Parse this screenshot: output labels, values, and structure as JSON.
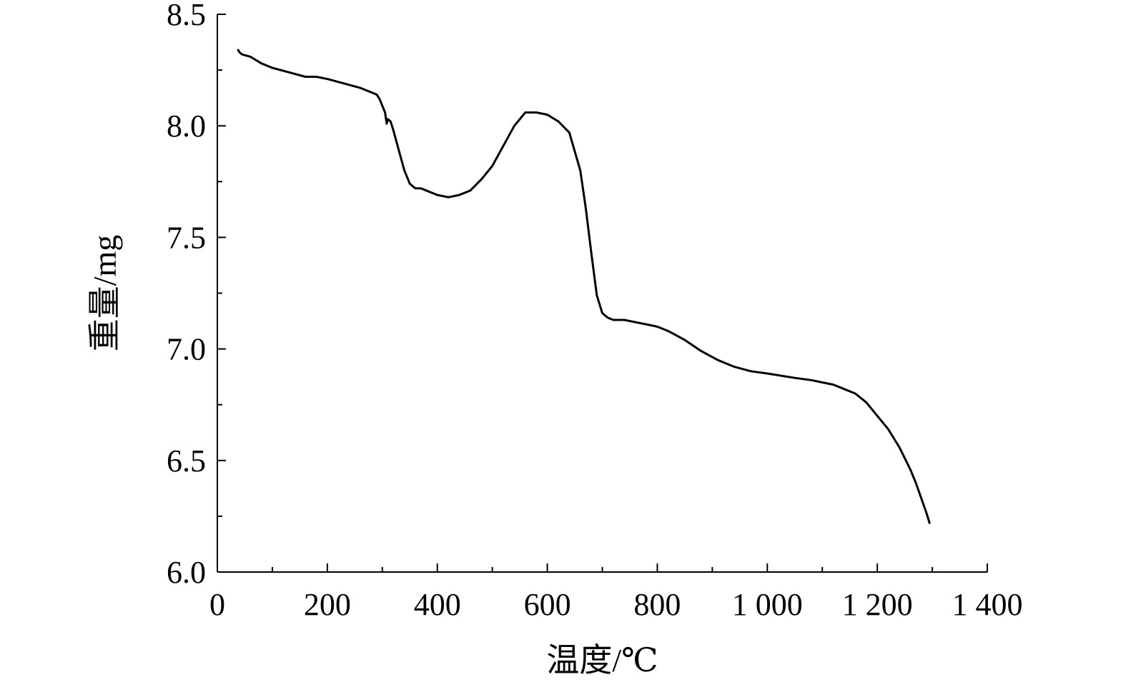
{
  "chart_data": {
    "type": "line",
    "xlabel": "温度/℃",
    "ylabel": "重量/mg",
    "xlim": [
      0,
      1400
    ],
    "ylim": [
      6.0,
      8.5
    ],
    "x_ticks": [
      0,
      200,
      400,
      600,
      800,
      1000,
      1200,
      1400
    ],
    "x_tick_labels": [
      "0",
      "200",
      "400",
      "600",
      "800",
      "1 000",
      "1 200",
      "1 400"
    ],
    "x_minor_step": 100,
    "y_ticks": [
      6.0,
      6.5,
      7.0,
      7.5,
      8.0,
      8.5
    ],
    "y_tick_labels": [
      "6.0",
      "6.5",
      "7.0",
      "7.5",
      "8.0",
      "8.5"
    ],
    "y_minor_step": 0.25,
    "grid": false,
    "series": [
      {
        "color": "#000000",
        "x": [
          38,
          40,
          45,
          60,
          80,
          100,
          130,
          160,
          180,
          200,
          230,
          260,
          280,
          290,
          295,
          300,
          305,
          308,
          310,
          315,
          320,
          330,
          340,
          350,
          360,
          370,
          380,
          400,
          420,
          440,
          460,
          480,
          500,
          520,
          540,
          560,
          580,
          600,
          620,
          640,
          660,
          670,
          680,
          690,
          700,
          710,
          720,
          740,
          760,
          780,
          800,
          820,
          850,
          880,
          910,
          940,
          970,
          1000,
          1050,
          1080,
          1100,
          1120,
          1140,
          1160,
          1180,
          1200,
          1220,
          1240,
          1260,
          1270,
          1280,
          1290,
          1295
        ],
        "y": [
          8.34,
          8.33,
          8.32,
          8.31,
          8.28,
          8.26,
          8.24,
          8.22,
          8.22,
          8.21,
          8.19,
          8.17,
          8.15,
          8.14,
          8.12,
          8.09,
          8.06,
          8.01,
          8.03,
          8.02,
          7.98,
          7.89,
          7.8,
          7.74,
          7.72,
          7.72,
          7.71,
          7.69,
          7.68,
          7.69,
          7.71,
          7.76,
          7.82,
          7.91,
          8.0,
          8.06,
          8.06,
          8.05,
          8.02,
          7.97,
          7.8,
          7.63,
          7.43,
          7.24,
          7.16,
          7.14,
          7.13,
          7.13,
          7.12,
          7.11,
          7.1,
          7.08,
          7.04,
          6.99,
          6.95,
          6.92,
          6.9,
          6.89,
          6.87,
          6.86,
          6.85,
          6.84,
          6.82,
          6.8,
          6.76,
          6.7,
          6.64,
          6.56,
          6.46,
          6.4,
          6.33,
          6.26,
          6.22
        ]
      }
    ]
  }
}
